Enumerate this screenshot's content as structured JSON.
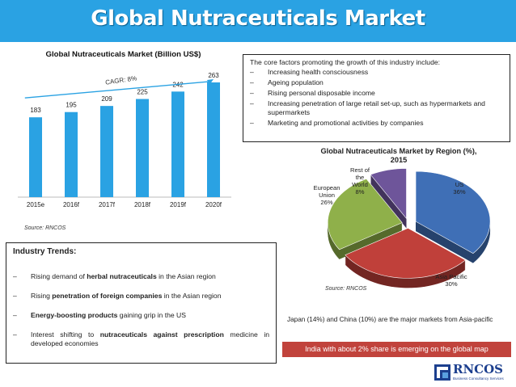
{
  "header": {
    "title": "Global Nutraceuticals Market"
  },
  "bar_chart": {
    "title": "Global Nutraceuticals Market (Billion US$)",
    "cagr_label": "CAGR: 8%",
    "source": "Source: RNCOS",
    "bar_color": "#2aa2e3"
  },
  "pie_chart": {
    "title_line1": "Global Nutraceuticals Market by Region (%),",
    "title_line2": "2015",
    "source": "Source: RNCOS"
  },
  "chart_data": [
    {
      "type": "bar",
      "title": "Global Nutraceuticals Market (Billion US$)",
      "categories": [
        "2015e",
        "2016f",
        "2017f",
        "2018f",
        "2019f",
        "2020f"
      ],
      "values": [
        183,
        195,
        209,
        225,
        242,
        263
      ],
      "ylim": [
        0,
        263
      ],
      "grid": false,
      "data_labels": true,
      "annotation": "CAGR: 8%"
    },
    {
      "type": "pie",
      "title": "Global Nutraceuticals Market by Region (%), 2015",
      "slices": [
        {
          "label": "US",
          "value": 36,
          "color": "#3f6fb6"
        },
        {
          "label": "Asia Pacific",
          "value": 30,
          "color": "#c0403a"
        },
        {
          "label": "European Union",
          "value": 26,
          "color": "#8fb04a"
        },
        {
          "label": "Rest of the World",
          "value": 8,
          "color": "#6e559a"
        }
      ]
    }
  ],
  "factors": {
    "intro": "The core factors promoting the growth of this industry include:",
    "items": [
      "Increasing health consciousness",
      "Ageing population",
      "Rising personal disposable income",
      "Increasing penetration of large retail set-up, such as hypermarkets and supermarkets",
      "Marketing and promotional activities by companies"
    ]
  },
  "trends": {
    "heading": "Industry Trends:",
    "items": [
      {
        "pre": "Rising demand of ",
        "bold": "herbal nutraceuticals",
        "post": " in the Asian region"
      },
      {
        "pre": "Rising ",
        "bold": "penetration of foreign companies",
        "post": " in the Asian region"
      },
      {
        "pre": "",
        "bold": "Energy-boosting products",
        "post": " gaining grip in the US"
      },
      {
        "pre": "Interest shifting to ",
        "bold": "nutraceuticals against prescription",
        "post": " medicine in developed economies"
      }
    ]
  },
  "note": "Japan (14%) and China (10%) are the major markets from Asia-pacific",
  "banner": "India with about 2% share is emerging on the global map",
  "logo": {
    "name": "RNCOS",
    "tagline": "Business Consultancy Services"
  }
}
